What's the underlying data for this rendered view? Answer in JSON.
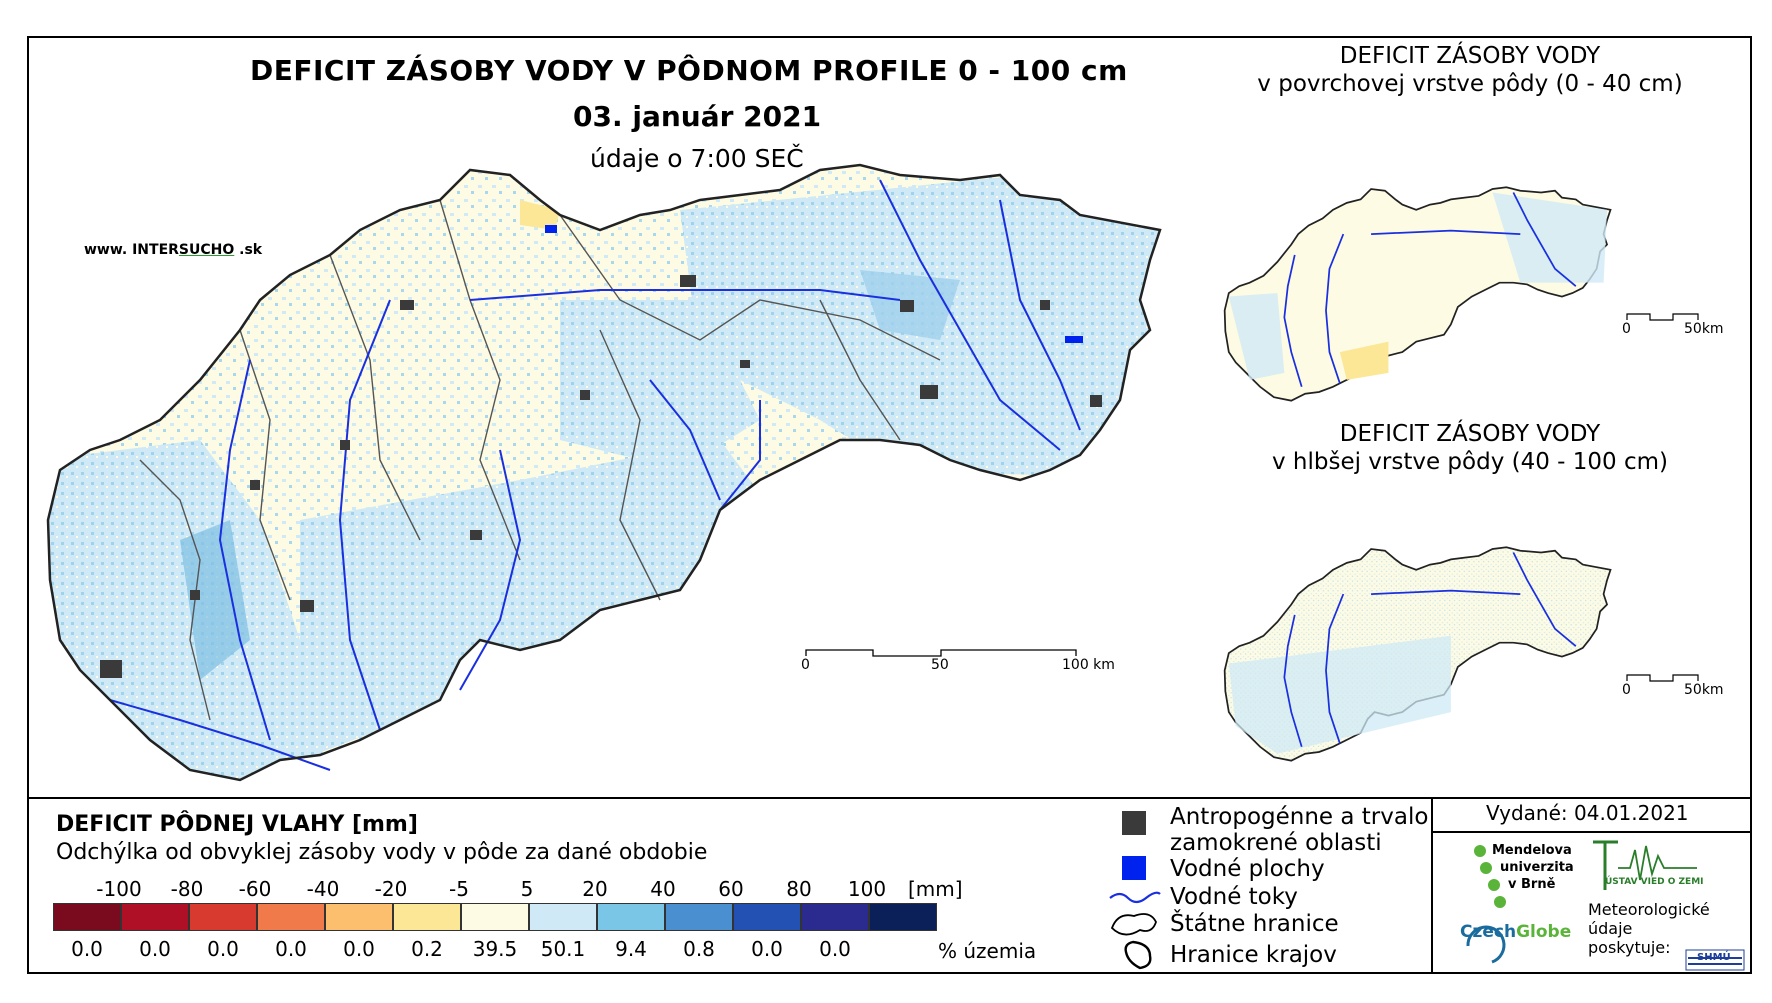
{
  "brand": {
    "prefix": "www. INTER",
    "highlight": "SUCHO",
    "suffix": " .sk"
  },
  "main_map": {
    "title": "DEFICIT ZÁSOBY VODY V PÔDNOM PROFILE 0 - 100 cm",
    "date": "03. január 2021",
    "note": "údaje o 7:00 SEČ",
    "scale_labels": [
      "0",
      "50",
      "100 km"
    ]
  },
  "inset_surface": {
    "title_line1": "DEFICIT ZÁSOBY VODY",
    "title_line2": "v povrchovej vrstve pôdy (0 - 40 cm)",
    "scale_labels": [
      "0",
      "50km"
    ]
  },
  "inset_deep": {
    "title_line1": "DEFICIT ZÁSOBY VODY",
    "title_line2": "v hlbšej vrstve pôdy (40 - 100 cm)",
    "scale_labels": [
      "0",
      "50km"
    ]
  },
  "legend": {
    "title": "DEFICIT PÔDNEJ VLAHY [mm]",
    "subtitle": "Odchýlka od obvyklej zásoby vody v pôde za dané obdobie",
    "unit": "[mm]",
    "percent_label": "% územia",
    "ticks": [
      "-100",
      "-80",
      "-60",
      "-40",
      "-20",
      "-5",
      "5",
      "20",
      "40",
      "60",
      "80",
      "100"
    ],
    "colors": [
      "#7a0a1e",
      "#b01025",
      "#d83a2f",
      "#f07a4a",
      "#fcbf6e",
      "#fbe796",
      "#fdfbe4",
      "#cfeaf6",
      "#79c6e6",
      "#4a8fd0",
      "#2350b3",
      "#2b2a8e",
      "#0b2058"
    ],
    "percentages": [
      "0.0",
      "0.0",
      "0.0",
      "0.0",
      "0.0",
      "0.2",
      "39.5",
      "50.1",
      "9.4",
      "0.8",
      "0.0",
      "0.0"
    ]
  },
  "symbols": {
    "anthropogenic_line1": "Antropogénne a trvalo",
    "anthropogenic_line2": "zamokrené oblasti",
    "water_bodies": "Vodné plochy",
    "rivers": "Vodné toky",
    "state_border": "Štátne hranice",
    "region_border": "Hranice krajov"
  },
  "issued": "Vydané: 04.01.2021",
  "logos": {
    "mendel": [
      "Mendelova",
      "univerzita",
      "v Brně"
    ],
    "czechglobe_a": "Czech",
    "czechglobe_b": "Globe",
    "uvz": "ÚSTAV VIED O ZEMI",
    "meteo": [
      "Meteorologické",
      "údaje",
      "poskytuje:"
    ],
    "shmu": "SHMÚ"
  }
}
